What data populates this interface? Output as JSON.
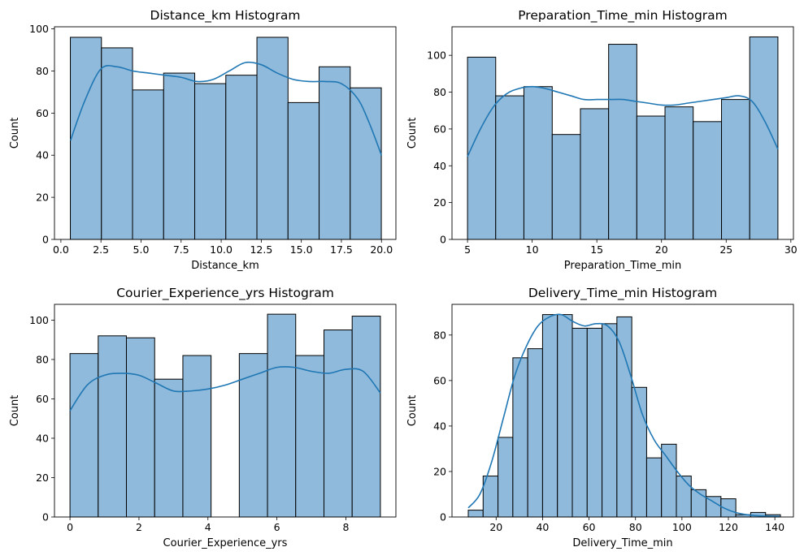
{
  "colors": {
    "bar_fill": "#8fbadb",
    "bar_edge": "#000000",
    "kde_line": "#1f77b4"
  },
  "chart_data": [
    {
      "type": "bar",
      "title": "Distance_km Histogram",
      "xlabel": "Distance_km",
      "ylabel": "Count",
      "xlim": [
        -0.4,
        20.9
      ],
      "ylim": [
        0,
        101
      ],
      "xticks": [
        0.0,
        2.5,
        5.0,
        7.5,
        10.0,
        12.5,
        15.0,
        17.5,
        20.0
      ],
      "xtick_labels": [
        "0.0",
        "2.5",
        "5.0",
        "7.5",
        "10.0",
        "12.5",
        "15.0",
        "17.5",
        "20.0"
      ],
      "yticks": [
        0,
        20,
        40,
        60,
        80,
        100
      ],
      "bins": [
        {
          "x0": 0.59,
          "x1": 2.53,
          "count": 96
        },
        {
          "x0": 2.53,
          "x1": 4.47,
          "count": 91
        },
        {
          "x0": 4.47,
          "x1": 6.41,
          "count": 71
        },
        {
          "x0": 6.41,
          "x1": 8.35,
          "count": 79
        },
        {
          "x0": 8.35,
          "x1": 10.29,
          "count": 74
        },
        {
          "x0": 10.29,
          "x1": 12.23,
          "count": 78
        },
        {
          "x0": 12.23,
          "x1": 14.17,
          "count": 96
        },
        {
          "x0": 14.17,
          "x1": 16.11,
          "count": 65
        },
        {
          "x0": 16.11,
          "x1": 18.05,
          "count": 82
        },
        {
          "x0": 18.05,
          "x1": 19.99,
          "count": 72
        },
        {
          "x0": 19.99,
          "x1": 19.99,
          "count": 0
        }
      ],
      "kde": {
        "x": [
          0.6,
          1.5,
          2.5,
          3.5,
          4.5,
          5.5,
          6.5,
          7.5,
          8.5,
          9.5,
          10.5,
          11.5,
          12.5,
          13.5,
          14.5,
          15.5,
          16.5,
          17.5,
          18.5,
          19.2,
          20.0
        ],
        "y": [
          47,
          66,
          81,
          82,
          80,
          79,
          78,
          77,
          75,
          76,
          80,
          84,
          83,
          79,
          76,
          75,
          75,
          74,
          67,
          56,
          40
        ]
      }
    },
    {
      "type": "bar",
      "title": "Preparation_Time_min Histogram",
      "xlabel": "Preparation_Time_min",
      "ylabel": "Count",
      "xlim": [
        3.8,
        30.2
      ],
      "ylim": [
        0,
        115.5
      ],
      "xticks": [
        5,
        10,
        15,
        20,
        25,
        30
      ],
      "xtick_labels": [
        "5",
        "10",
        "15",
        "20",
        "25",
        "30"
      ],
      "yticks": [
        0,
        20,
        40,
        60,
        80,
        100
      ],
      "bins": [
        {
          "x0": 5.0,
          "x1": 7.18,
          "count": 99
        },
        {
          "x0": 7.18,
          "x1": 9.36,
          "count": 78
        },
        {
          "x0": 9.36,
          "x1": 11.55,
          "count": 83
        },
        {
          "x0": 11.55,
          "x1": 13.73,
          "count": 57
        },
        {
          "x0": 13.73,
          "x1": 15.91,
          "count": 71
        },
        {
          "x0": 15.91,
          "x1": 18.09,
          "count": 106
        },
        {
          "x0": 18.09,
          "x1": 20.27,
          "count": 67
        },
        {
          "x0": 20.27,
          "x1": 22.45,
          "count": 72
        },
        {
          "x0": 22.45,
          "x1": 24.64,
          "count": 64
        },
        {
          "x0": 24.64,
          "x1": 26.82,
          "count": 76
        },
        {
          "x0": 26.82,
          "x1": 29.0,
          "count": 110
        }
      ],
      "kde": {
        "x": [
          5,
          6,
          7,
          8,
          9,
          10,
          11,
          12,
          13,
          14,
          15,
          16,
          17,
          18,
          19,
          20,
          21,
          22,
          23,
          24,
          25,
          26,
          27,
          28,
          29
        ],
        "y": [
          45,
          60,
          72,
          79,
          82,
          83,
          82,
          80,
          78,
          76,
          76,
          76,
          76,
          75,
          74,
          73,
          73,
          74,
          75,
          76,
          77,
          78,
          75,
          64,
          49
        ]
      }
    },
    {
      "type": "bar",
      "title": "Courier_Experience_yrs Histogram",
      "xlabel": "Courier_Experience_yrs",
      "ylabel": "Count",
      "xlim": [
        -0.45,
        9.45
      ],
      "ylim": [
        0,
        108
      ],
      "xticks": [
        0,
        2,
        4,
        6,
        8
      ],
      "xtick_labels": [
        "0",
        "2",
        "4",
        "6",
        "8"
      ],
      "yticks": [
        0,
        20,
        40,
        60,
        80,
        100
      ],
      "bins": [
        {
          "x0": 0.0,
          "x1": 0.818,
          "count": 83
        },
        {
          "x0": 0.818,
          "x1": 1.636,
          "count": 92
        },
        {
          "x0": 1.636,
          "x1": 2.455,
          "count": 91
        },
        {
          "x0": 2.455,
          "x1": 3.273,
          "count": 70
        },
        {
          "x0": 3.273,
          "x1": 4.091,
          "count": 82
        },
        {
          "x0": 4.091,
          "x1": 4.909,
          "count": 0
        },
        {
          "x0": 4.909,
          "x1": 5.727,
          "count": 83
        },
        {
          "x0": 5.727,
          "x1": 6.545,
          "count": 103
        },
        {
          "x0": 6.545,
          "x1": 7.364,
          "count": 82
        },
        {
          "x0": 7.364,
          "x1": 8.182,
          "count": 95
        },
        {
          "x0": 8.182,
          "x1": 9.0,
          "count": 102
        }
      ],
      "kde": {
        "x": [
          0,
          0.5,
          1,
          1.5,
          2,
          2.5,
          3,
          3.5,
          4,
          4.5,
          5,
          5.5,
          6,
          6.5,
          7,
          7.5,
          8,
          8.5,
          9
        ],
        "y": [
          54,
          67,
          72,
          73,
          72,
          68,
          64,
          64,
          65,
          67,
          70,
          73,
          76,
          76,
          74,
          73,
          75,
          74,
          63
        ]
      }
    },
    {
      "type": "bar",
      "title": "Delivery_Time_min Histogram",
      "xlabel": "Delivery_Time_min",
      "ylabel": "Count",
      "xlim": [
        1,
        148
      ],
      "ylim": [
        0,
        93.5
      ],
      "xticks": [
        20,
        40,
        60,
        80,
        100,
        120,
        140
      ],
      "xtick_labels": [
        "20",
        "40",
        "60",
        "80",
        "100",
        "120",
        "140"
      ],
      "yticks": [
        0,
        20,
        40,
        60,
        80
      ],
      "bins": [
        {
          "x0": 8,
          "x1": 14.4,
          "count": 3
        },
        {
          "x0": 14.4,
          "x1": 20.8,
          "count": 18
        },
        {
          "x0": 20.8,
          "x1": 27.2,
          "count": 35
        },
        {
          "x0": 27.2,
          "x1": 33.6,
          "count": 70
        },
        {
          "x0": 33.6,
          "x1": 40.0,
          "count": 74
        },
        {
          "x0": 40.0,
          "x1": 46.4,
          "count": 89
        },
        {
          "x0": 46.4,
          "x1": 52.8,
          "count": 89
        },
        {
          "x0": 52.8,
          "x1": 59.2,
          "count": 83
        },
        {
          "x0": 59.2,
          "x1": 65.6,
          "count": 83
        },
        {
          "x0": 65.6,
          "x1": 72.0,
          "count": 85
        },
        {
          "x0": 72.0,
          "x1": 78.4,
          "count": 88
        },
        {
          "x0": 78.4,
          "x1": 84.8,
          "count": 57
        },
        {
          "x0": 84.8,
          "x1": 91.2,
          "count": 26
        },
        {
          "x0": 91.2,
          "x1": 97.6,
          "count": 32
        },
        {
          "x0": 97.6,
          "x1": 104.0,
          "count": 18
        },
        {
          "x0": 104.0,
          "x1": 110.4,
          "count": 12
        },
        {
          "x0": 110.4,
          "x1": 116.8,
          "count": 9
        },
        {
          "x0": 116.8,
          "x1": 123.2,
          "count": 8
        },
        {
          "x0": 123.2,
          "x1": 129.6,
          "count": 1
        },
        {
          "x0": 129.6,
          "x1": 136.0,
          "count": 2
        },
        {
          "x0": 136.0,
          "x1": 142.4,
          "count": 1
        }
      ],
      "kde": {
        "x": [
          8,
          13,
          18,
          23,
          28,
          33,
          38,
          43,
          48,
          53,
          58,
          63,
          68,
          73,
          78,
          83,
          88,
          93,
          98,
          103,
          108,
          113,
          118,
          123,
          128,
          133,
          138,
          142
        ],
        "y": [
          4,
          10,
          24,
          43,
          62,
          75,
          84,
          88,
          89,
          86,
          84,
          85,
          84,
          77,
          62,
          45,
          34,
          27,
          20,
          14,
          10,
          7,
          4,
          2,
          1,
          0.5,
          0.3,
          0.2
        ]
      }
    }
  ]
}
